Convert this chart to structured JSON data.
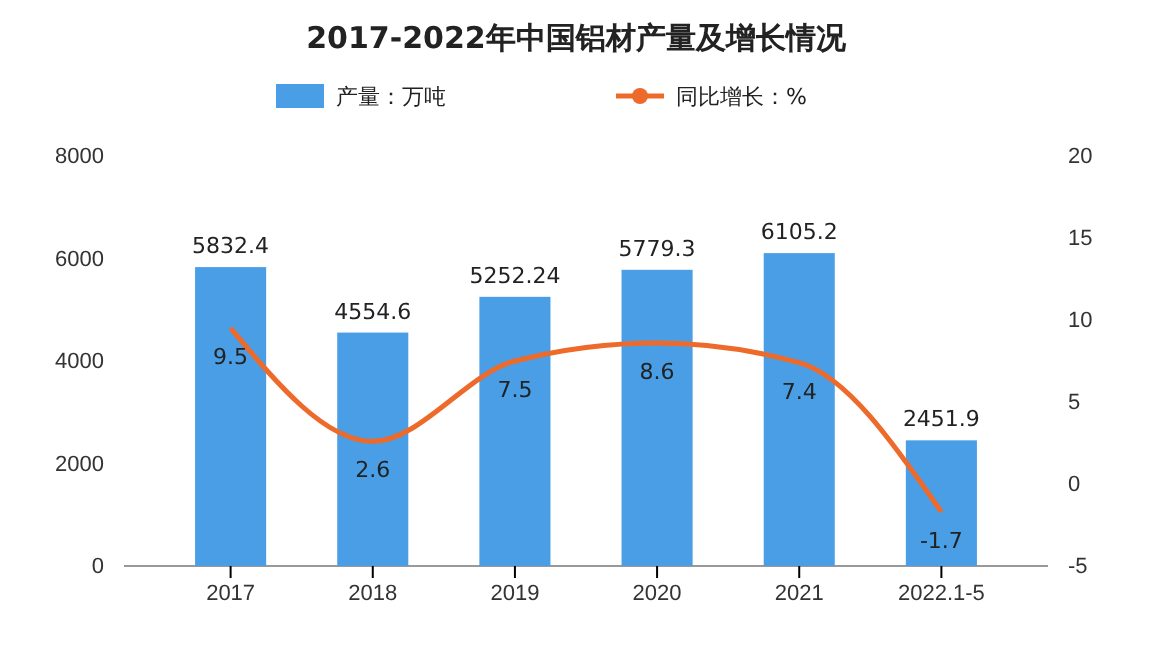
{
  "chart_data": {
    "type": "bar",
    "title": "2017-2022年中国铝材产量及增长情况",
    "categories": [
      "2017",
      "2018",
      "2019",
      "2020",
      "2021",
      "2022.1-5"
    ],
    "series": [
      {
        "name": "产量：万吨",
        "color": "#4a9ee6",
        "values": [
          5832.4,
          4554.6,
          5252.24,
          5779.3,
          6105.2,
          2451.9
        ]
      },
      {
        "name": "同比增长：%",
        "type": "line",
        "axis": "y2",
        "color": "#ed6a2a",
        "values": [
          9.5,
          2.6,
          7.5,
          8.6,
          7.4,
          -1.7
        ]
      }
    ],
    "ylim": [
      0,
      8000
    ],
    "yticks": [
      0,
      2000,
      4000,
      6000,
      8000
    ],
    "y2lim": [
      -5,
      20
    ],
    "y2ticks": [
      -5,
      0,
      5,
      10,
      15,
      20
    ],
    "data_labels": true,
    "legend": "top",
    "marker": "none",
    "line_style": "solid"
  }
}
